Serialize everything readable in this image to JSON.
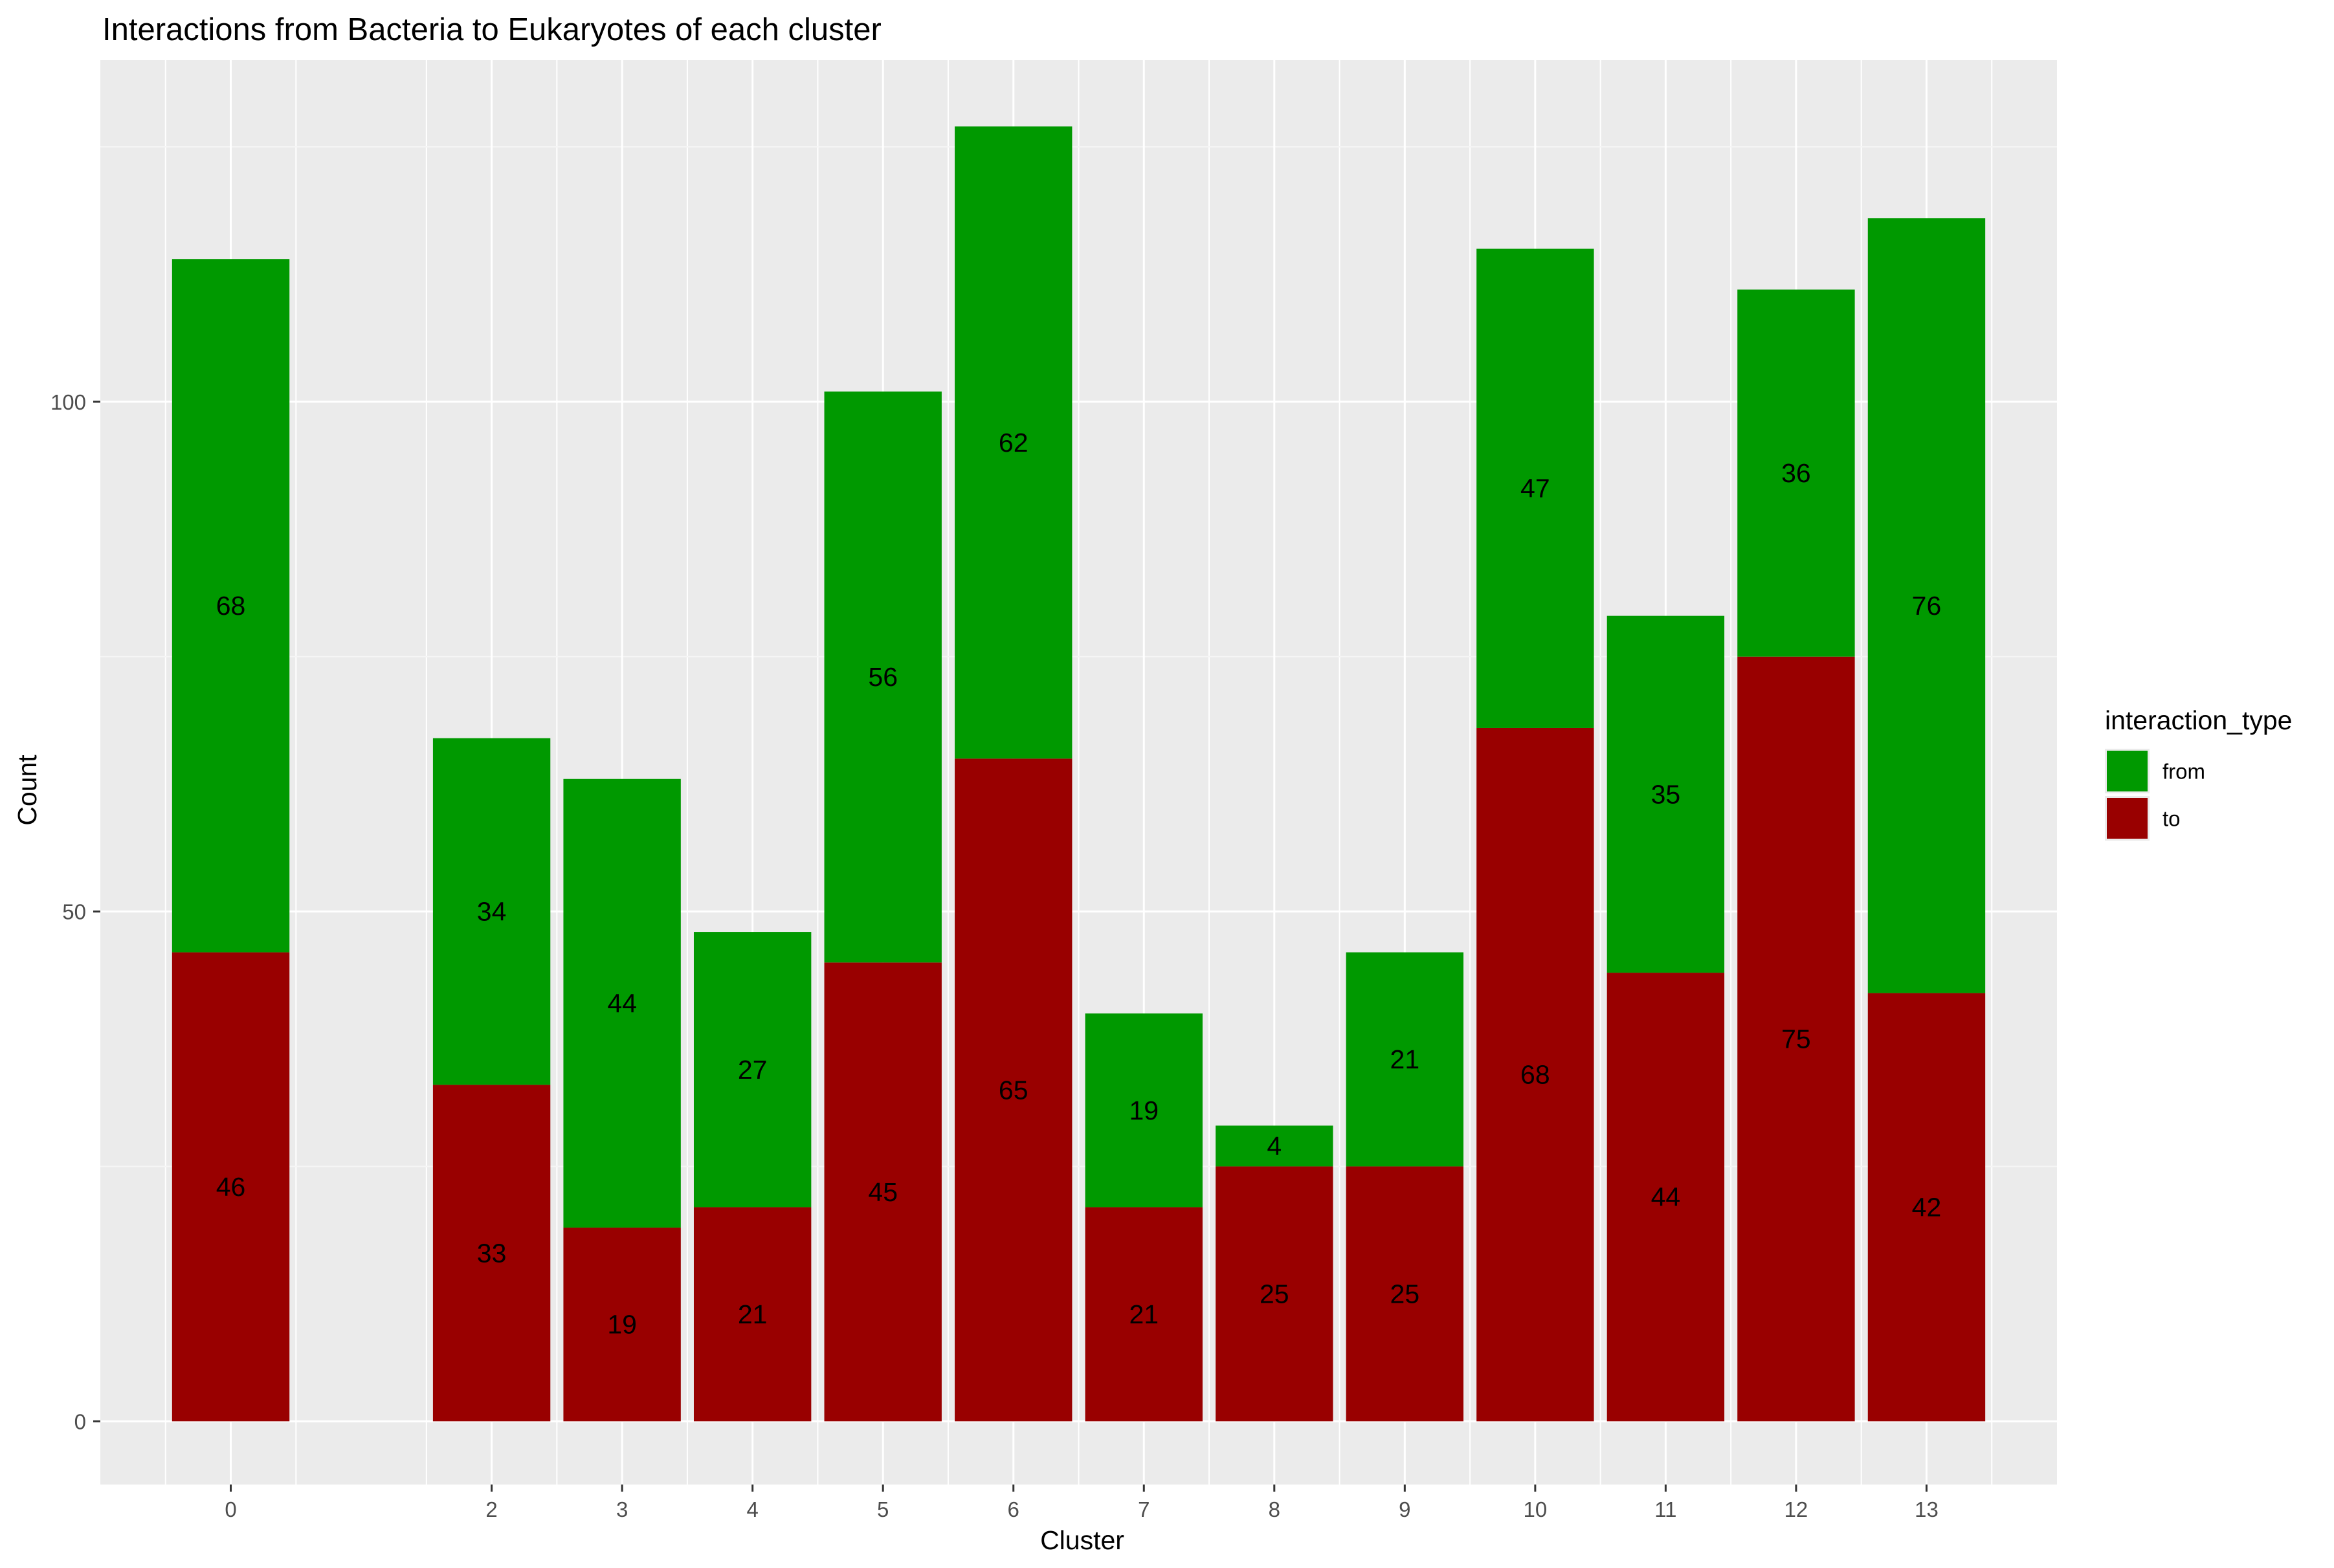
{
  "chart_data": {
    "type": "bar",
    "stacked": true,
    "title": "Interactions from Bacteria to Eukaryotes of each cluster",
    "xlabel": "Cluster",
    "ylabel": "Count",
    "x": [
      0,
      2,
      3,
      4,
      5,
      6,
      7,
      8,
      9,
      10,
      11,
      12,
      13
    ],
    "x_ticks": [
      "0",
      "2",
      "3",
      "4",
      "5",
      "6",
      "7",
      "8",
      "9",
      "10",
      "11",
      "12",
      "13"
    ],
    "y_ticks": [
      0,
      50,
      100
    ],
    "xlim": [
      -1,
      14
    ],
    "ylim": [
      -6.2,
      133.5
    ],
    "grid": true,
    "legend": {
      "title": "interaction_type",
      "placement": "right",
      "entries": [
        "from",
        "to"
      ]
    },
    "series": [
      {
        "name": "to",
        "color": "#990000",
        "values": [
          46,
          33,
          19,
          21,
          45,
          65,
          21,
          25,
          25,
          68,
          44,
          75,
          42
        ]
      },
      {
        "name": "from",
        "color": "#009900",
        "values": [
          68,
          34,
          44,
          27,
          56,
          62,
          19,
          4,
          21,
          47,
          35,
          36,
          76
        ]
      }
    ],
    "colors": {
      "panel_background": "#EBEBEB",
      "grid_major": "#FFFFFF",
      "grid_minor": "#F5F5F5",
      "axis_text": "#4D4D4D",
      "text": "#000000"
    }
  }
}
